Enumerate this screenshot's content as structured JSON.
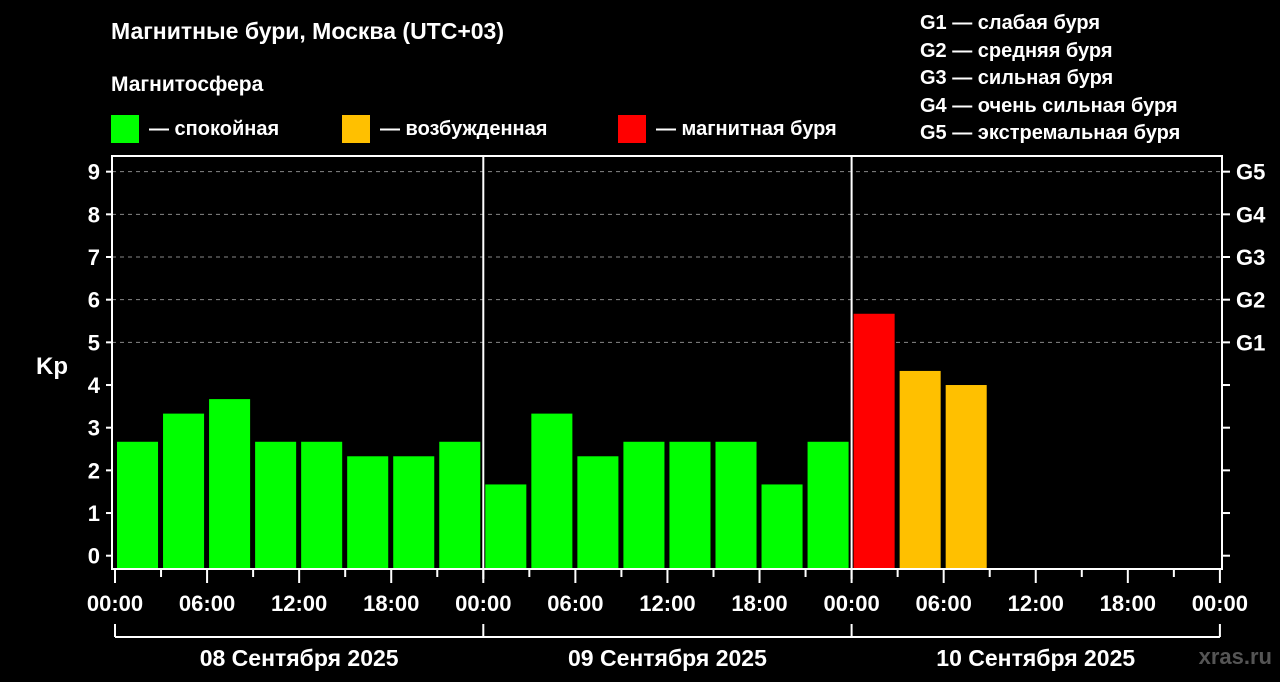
{
  "title": "Магнитные бури, Москва (UTC+03)",
  "subtitle": "Магнитосфера",
  "legend": [
    {
      "label": "— спокойная",
      "color": "#00ff00"
    },
    {
      "label": "— возбужденная",
      "color": "#ffc000"
    },
    {
      "label": "— магнитная буря",
      "color": "#ff0000"
    }
  ],
  "g_scale": [
    "G1 — слабая буря",
    "G2 — средняя буря",
    "G3 — сильная буря",
    "G4 — очень сильная буря",
    "G5 — экстремальная буря"
  ],
  "source": "xras.ru",
  "chart_data": {
    "type": "bar",
    "ylabel": "Kp",
    "ylim": [
      0,
      9
    ],
    "yticks": [
      "0",
      "1",
      "2",
      "3",
      "4",
      "5",
      "6",
      "7",
      "8",
      "9"
    ],
    "right_ticks": [
      {
        "value": 5,
        "label": "G1"
      },
      {
        "value": 6,
        "label": "G2"
      },
      {
        "value": 7,
        "label": "G3"
      },
      {
        "value": 8,
        "label": "G4"
      },
      {
        "value": 9,
        "label": "G5"
      }
    ],
    "grid": "dashed horizontal at 5-9",
    "xtick_labels": [
      "00:00",
      "06:00",
      "12:00",
      "18:00",
      "00:00",
      "06:00",
      "12:00",
      "18:00",
      "00:00",
      "06:00",
      "12:00",
      "18:00",
      "00:00"
    ],
    "days": [
      "08 Сентября 2025",
      "09 Сентября 2025",
      "10 Сентября 2025"
    ],
    "interval_hours": 3,
    "values": [
      2.67,
      3.33,
      3.67,
      2.67,
      2.67,
      2.33,
      2.33,
      2.67,
      1.67,
      3.33,
      2.33,
      2.67,
      2.67,
      2.67,
      1.67,
      2.67,
      5.67,
      4.33,
      4.0
    ],
    "colors": {
      "calm": "#00ff00",
      "active": "#ffc000",
      "storm": "#ff0000"
    }
  }
}
